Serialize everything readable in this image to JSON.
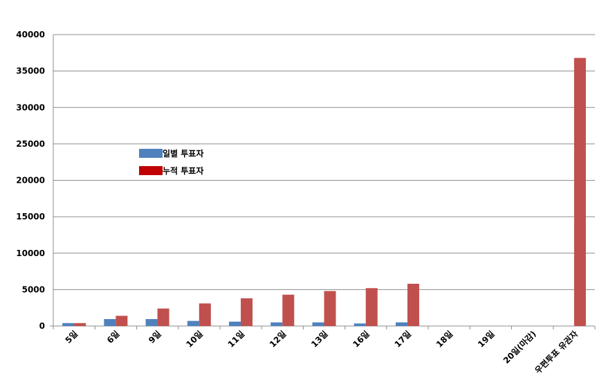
{
  "chart_data": {
    "type": "bar",
    "categories": [
      "5일",
      "6일",
      "9일",
      "10일",
      "11일",
      "12일",
      "13일",
      "16일",
      "17일",
      "18일",
      "19일",
      "20일(마감)",
      "우편투표 유권자"
    ],
    "series": [
      {
        "name": "일별 투표자",
        "color": "#4f81bd",
        "values": [
          400,
          950,
          950,
          700,
          600,
          500,
          500,
          350,
          500,
          null,
          null,
          null,
          null
        ]
      },
      {
        "name": "누적 투표자",
        "color": "#c0504d",
        "legend_color": "#c00000",
        "values": [
          400,
          1400,
          2400,
          3100,
          3800,
          4300,
          4800,
          5200,
          5800,
          null,
          null,
          null,
          36800
        ]
      }
    ],
    "yticks": [
      "0",
      "5000",
      "10000",
      "15000",
      "20000",
      "25000",
      "30000",
      "35000",
      "40000"
    ],
    "ylim": [
      0,
      40000
    ],
    "grid": true,
    "legend_position": "upper-left-inside"
  }
}
